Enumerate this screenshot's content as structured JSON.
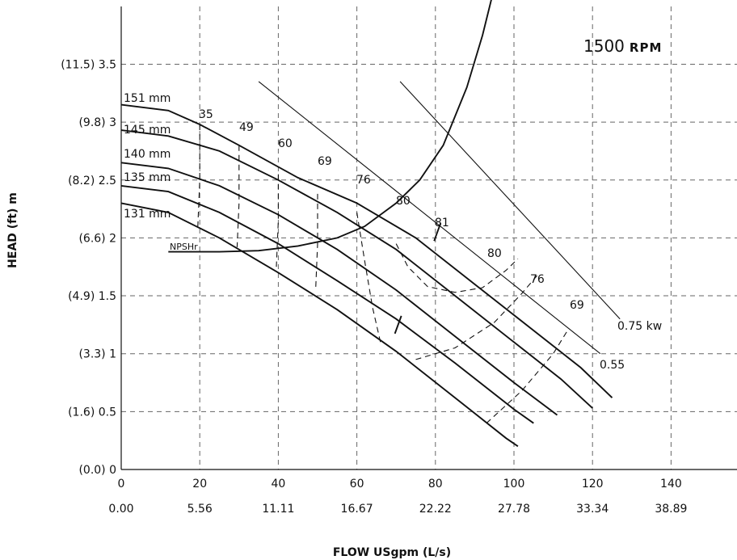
{
  "chart_data": {
    "type": "line",
    "title": "1500",
    "title_unit": "RPM",
    "xlabel": "FLOW USgpm (L/s)",
    "ylabel": "HEAD (ft) m",
    "xlim": [
      0,
      150
    ],
    "ylim": [
      0,
      4.1
    ],
    "grid": true,
    "x_ticks": [
      {
        "v": 0,
        "top": "0",
        "bottom": "0.00"
      },
      {
        "v": 20,
        "top": "20",
        "bottom": "5.56"
      },
      {
        "v": 40,
        "top": "40",
        "bottom": "11.11"
      },
      {
        "v": 60,
        "top": "60",
        "bottom": "16.67"
      },
      {
        "v": 80,
        "top": "80",
        "bottom": "22.22"
      },
      {
        "v": 100,
        "top": "100",
        "bottom": "27.78"
      },
      {
        "v": 120,
        "top": "120",
        "bottom": "33.34"
      },
      {
        "v": 140,
        "top": "140",
        "bottom": "38.89"
      }
    ],
    "y_ticks": [
      {
        "v": 0,
        "label": "(0.0) 0"
      },
      {
        "v": 0.5,
        "label": "(1.6) 0.5"
      },
      {
        "v": 1,
        "label": "(3.3) 1"
      },
      {
        "v": 1.5,
        "label": "(4.9) 1.5"
      },
      {
        "v": 2,
        "label": "(6.6) 2"
      },
      {
        "v": 2.5,
        "label": "(8.2) 2.5"
      },
      {
        "v": 3,
        "label": "(9.8) 3"
      },
      {
        "v": 3.5,
        "label": "(11.5) 3.5"
      }
    ],
    "impellers": [
      {
        "name": "151 mm",
        "points": [
          [
            0,
            3.15
          ],
          [
            12,
            3.1
          ],
          [
            20,
            2.98
          ],
          [
            30,
            2.8
          ],
          [
            45,
            2.52
          ],
          [
            60,
            2.3
          ],
          [
            75,
            2.0
          ],
          [
            90,
            1.6
          ],
          [
            105,
            1.2
          ],
          [
            117,
            0.88
          ],
          [
            125,
            0.62
          ]
        ]
      },
      {
        "name": "145 mm",
        "points": [
          [
            0,
            2.93
          ],
          [
            12,
            2.88
          ],
          [
            25,
            2.75
          ],
          [
            40,
            2.5
          ],
          [
            55,
            2.22
          ],
          [
            70,
            1.9
          ],
          [
            85,
            1.5
          ],
          [
            100,
            1.1
          ],
          [
            112,
            0.78
          ],
          [
            120,
            0.53
          ]
        ]
      },
      {
        "name": "140 mm",
        "points": [
          [
            0,
            2.65
          ],
          [
            12,
            2.6
          ],
          [
            25,
            2.45
          ],
          [
            40,
            2.2
          ],
          [
            55,
            1.9
          ],
          [
            70,
            1.55
          ],
          [
            85,
            1.15
          ],
          [
            100,
            0.75
          ],
          [
            111,
            0.47
          ]
        ]
      },
      {
        "name": "135 mm",
        "points": [
          [
            0,
            2.45
          ],
          [
            12,
            2.4
          ],
          [
            25,
            2.22
          ],
          [
            40,
            1.95
          ],
          [
            55,
            1.63
          ],
          [
            70,
            1.3
          ],
          [
            85,
            0.92
          ],
          [
            100,
            0.52
          ],
          [
            105,
            0.4
          ]
        ]
      },
      {
        "name": "131 mm",
        "points": [
          [
            0,
            2.3
          ],
          [
            12,
            2.22
          ],
          [
            25,
            2.0
          ],
          [
            40,
            1.7
          ],
          [
            55,
            1.38
          ],
          [
            70,
            1.02
          ],
          [
            85,
            0.62
          ],
          [
            98,
            0.27
          ],
          [
            101,
            0.2
          ]
        ]
      }
    ],
    "npsh": {
      "name": "NPSHr",
      "points": [
        [
          12,
          1.88
        ],
        [
          25,
          1.88
        ],
        [
          35,
          1.89
        ],
        [
          45,
          1.93
        ],
        [
          55,
          2.0
        ],
        [
          62,
          2.1
        ],
        [
          70,
          2.3
        ],
        [
          76,
          2.5
        ],
        [
          82,
          2.8
        ],
        [
          88,
          3.3
        ],
        [
          92,
          3.75
        ],
        [
          96,
          4.3
        ],
        [
          100,
          4.9
        ]
      ]
    },
    "power_lines": [
      {
        "name": "0.75 kw",
        "points": [
          [
            71,
            3.35
          ],
          [
            127,
            1.3
          ]
        ]
      },
      {
        "name": "0.55",
        "points": [
          [
            35,
            3.35
          ],
          [
            122,
            1.0
          ]
        ]
      }
    ],
    "efficiency_labels": [
      "35",
      "49",
      "60",
      "69",
      "76",
      "80",
      "81",
      "80",
      "76",
      "69"
    ],
    "efficiency_curves": [
      {
        "points": [
          [
            20,
            2.98
          ],
          [
            20,
            2.5
          ],
          [
            19.5,
            2.1
          ]
        ]
      },
      {
        "points": [
          [
            30,
            2.8
          ],
          [
            30,
            2.3
          ],
          [
            29.5,
            1.92
          ]
        ]
      },
      {
        "points": [
          [
            40,
            2.55
          ],
          [
            40,
            2.15
          ],
          [
            39.5,
            1.75
          ]
        ]
      },
      {
        "points": [
          [
            50,
            2.38
          ],
          [
            50,
            1.95
          ],
          [
            49.5,
            1.55
          ]
        ]
      },
      {
        "points": [
          [
            60,
            2.22
          ],
          [
            62,
            1.8
          ],
          [
            64,
            1.4
          ],
          [
            66,
            1.1
          ]
        ]
      },
      {
        "points": [
          [
            70,
            1.95
          ],
          [
            73,
            1.75
          ],
          [
            78,
            1.58
          ],
          [
            85,
            1.53
          ],
          [
            92,
            1.57
          ],
          [
            98,
            1.72
          ],
          [
            101,
            1.82
          ]
        ]
      },
      {
        "points": [
          [
            75,
            0.95
          ],
          [
            85,
            1.05
          ],
          [
            95,
            1.27
          ],
          [
            102,
            1.52
          ],
          [
            106,
            1.68
          ]
        ]
      },
      {
        "points": [
          [
            93,
            0.4
          ],
          [
            102,
            0.68
          ],
          [
            110,
            1.0
          ],
          [
            114,
            1.22
          ]
        ]
      }
    ],
    "markers": [
      {
        "label": "81",
        "x": 80.5,
        "y": 2.05
      },
      {
        "label": "",
        "x": 70.5,
        "y": 1.25
      }
    ]
  }
}
